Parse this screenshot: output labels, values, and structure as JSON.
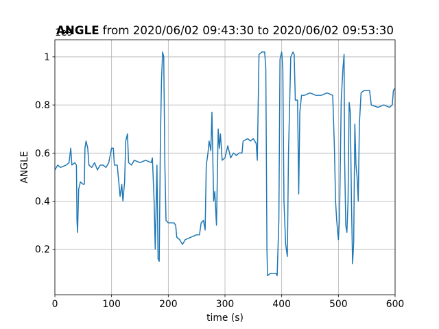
{
  "chart_data": {
    "type": "line",
    "title": {
      "name": "ANGLE",
      "range": "from 2020/06/02 09:43:30 to 2020/06/02 09:53:30"
    },
    "x_label": "time (s)",
    "y_label": "ANGLE",
    "y_offset_label": "1e9",
    "xlim": [
      0,
      600
    ],
    "xticks": [
      0,
      100,
      200,
      300,
      400,
      500,
      600
    ],
    "ylim": [
      0.011,
      1.071
    ],
    "yticks": [
      0.2,
      0.4,
      0.6,
      0.8,
      1.0
    ],
    "grid": true,
    "x": [
      0,
      5,
      10,
      20,
      25,
      28,
      30,
      35,
      38,
      39,
      40,
      42,
      45,
      50,
      52,
      53,
      55,
      58,
      60,
      65,
      70,
      75,
      80,
      85,
      90,
      95,
      100,
      103,
      105,
      110,
      115,
      118,
      120,
      123,
      125,
      128,
      130,
      135,
      140,
      150,
      160,
      170,
      172,
      175,
      177,
      180,
      182,
      184,
      186,
      188,
      190,
      192,
      194,
      196,
      200,
      210,
      213,
      215,
      220,
      225,
      230,
      240,
      250,
      255,
      258,
      262,
      265,
      267,
      270,
      272,
      275,
      277,
      280,
      282,
      285,
      288,
      290,
      292,
      295,
      300,
      305,
      310,
      315,
      320,
      325,
      330,
      332,
      340,
      345,
      350,
      355,
      357,
      360,
      365,
      370,
      372,
      374,
      375,
      380,
      390,
      392,
      395,
      397,
      400,
      402,
      404,
      407,
      410,
      412,
      414,
      416,
      420,
      422,
      424,
      428,
      430,
      432,
      435,
      440,
      450,
      460,
      470,
      480,
      490,
      493,
      495,
      497,
      500,
      502,
      505,
      508,
      510,
      511,
      513,
      515,
      517,
      519,
      521,
      523,
      525,
      527,
      529,
      531,
      533,
      535,
      537,
      540,
      545,
      550,
      555,
      558,
      570,
      580,
      590,
      595,
      597,
      600
    ],
    "series": [
      {
        "name": "ANGLE",
        "color": "#1f77b4",
        "values": [
          0.53,
          0.55,
          0.54,
          0.55,
          0.56,
          0.62,
          0.55,
          0.56,
          0.55,
          0.32,
          0.27,
          0.45,
          0.48,
          0.47,
          0.47,
          0.62,
          0.65,
          0.62,
          0.55,
          0.54,
          0.56,
          0.53,
          0.55,
          0.55,
          0.54,
          0.56,
          0.62,
          0.62,
          0.55,
          0.55,
          0.42,
          0.47,
          0.4,
          0.48,
          0.65,
          0.68,
          0.56,
          0.55,
          0.57,
          0.56,
          0.57,
          0.56,
          0.58,
          0.4,
          0.2,
          0.55,
          0.16,
          0.15,
          0.63,
          0.9,
          1.02,
          1.0,
          0.55,
          0.32,
          0.31,
          0.31,
          0.3,
          0.25,
          0.24,
          0.22,
          0.24,
          0.25,
          0.26,
          0.26,
          0.31,
          0.32,
          0.28,
          0.55,
          0.6,
          0.65,
          0.61,
          0.77,
          0.4,
          0.44,
          0.3,
          0.7,
          0.62,
          0.68,
          0.57,
          0.58,
          0.63,
          0.58,
          0.6,
          0.59,
          0.6,
          0.6,
          0.65,
          0.66,
          0.65,
          0.66,
          0.64,
          0.57,
          1.01,
          1.02,
          1.02,
          0.95,
          0.2,
          0.09,
          0.1,
          0.1,
          0.09,
          0.32,
          0.99,
          1.02,
          0.95,
          0.4,
          0.22,
          0.17,
          0.6,
          0.8,
          1.0,
          1.02,
          1.01,
          0.82,
          0.82,
          0.43,
          0.77,
          0.84,
          0.84,
          0.85,
          0.84,
          0.84,
          0.85,
          0.84,
          0.62,
          0.4,
          0.32,
          0.24,
          0.33,
          0.82,
          0.95,
          1.01,
          0.57,
          0.3,
          0.27,
          0.4,
          0.81,
          0.77,
          0.4,
          0.14,
          0.23,
          0.72,
          0.55,
          0.5,
          0.4,
          0.72,
          0.85,
          0.86,
          0.86,
          0.86,
          0.8,
          0.79,
          0.8,
          0.79,
          0.8,
          0.86,
          0.87
        ]
      }
    ]
  }
}
